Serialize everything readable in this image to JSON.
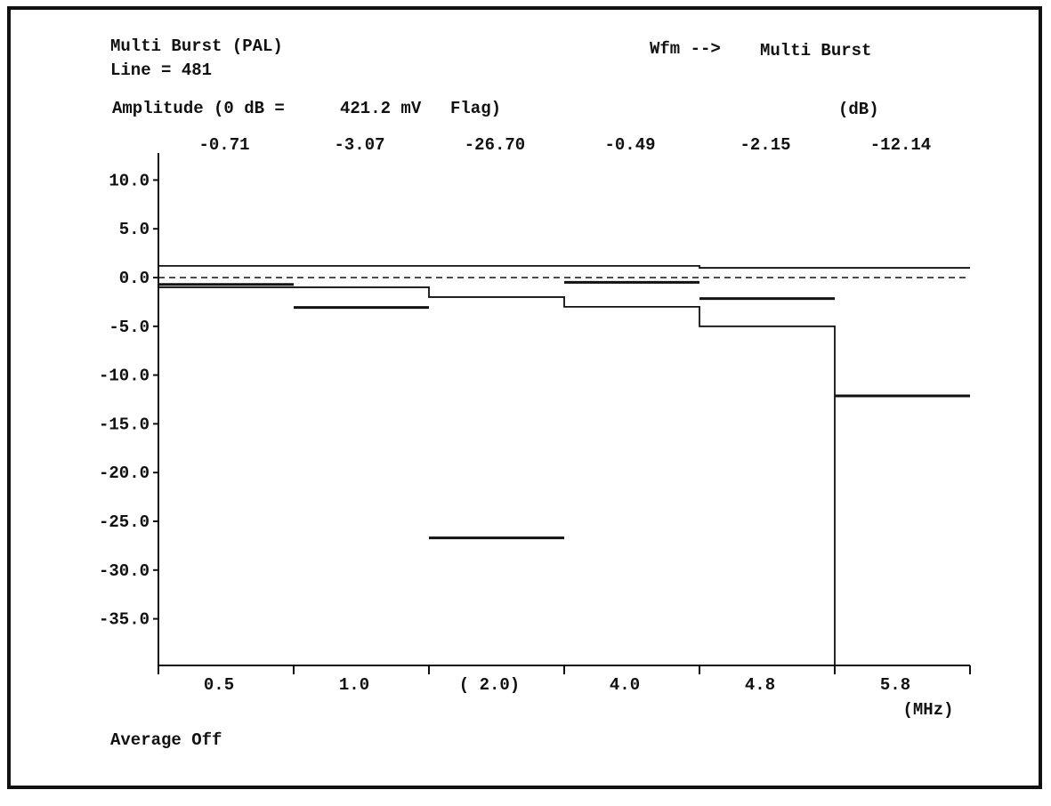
{
  "header": {
    "title": "Multi Burst (PAL)",
    "line": "Line = 481",
    "waveform_label": "Wfm -->",
    "waveform_value": "Multi Burst",
    "amplitude_label": "Amplitude (0 dB =",
    "amplitude_value": "421.2 mV",
    "amplitude_flag": "Flag)",
    "units": "(dB)"
  },
  "footer": {
    "average": "Average Off"
  },
  "chart_data": {
    "type": "line",
    "categories": [
      "0.5",
      "1.0",
      "( 2.0)",
      "4.0",
      "4.8",
      "5.8"
    ],
    "x_unit": "(MHz)",
    "packet_values": [
      "-0.71",
      "-3.07",
      "-26.70",
      "-0.49",
      "-2.15",
      "-12.14"
    ],
    "values": [
      -0.71,
      -3.07,
      -26.7,
      -0.49,
      -2.15,
      -12.14
    ],
    "yticks": [
      "10.0",
      "5.0",
      "0.0",
      "-5.0",
      "-10.0",
      "-15.0",
      "-20.0",
      "-25.0",
      "-30.0",
      "-35.0"
    ],
    "ylim": [
      -40,
      12.5
    ],
    "upper_limit": [
      1.2,
      1.2,
      1.2,
      1.2,
      1.0,
      1.0
    ],
    "lower_limit": [
      -1.0,
      -1.0,
      -2.0,
      -3.0,
      -5.0,
      -40.0
    ],
    "reference": 0.0,
    "grid": false
  }
}
